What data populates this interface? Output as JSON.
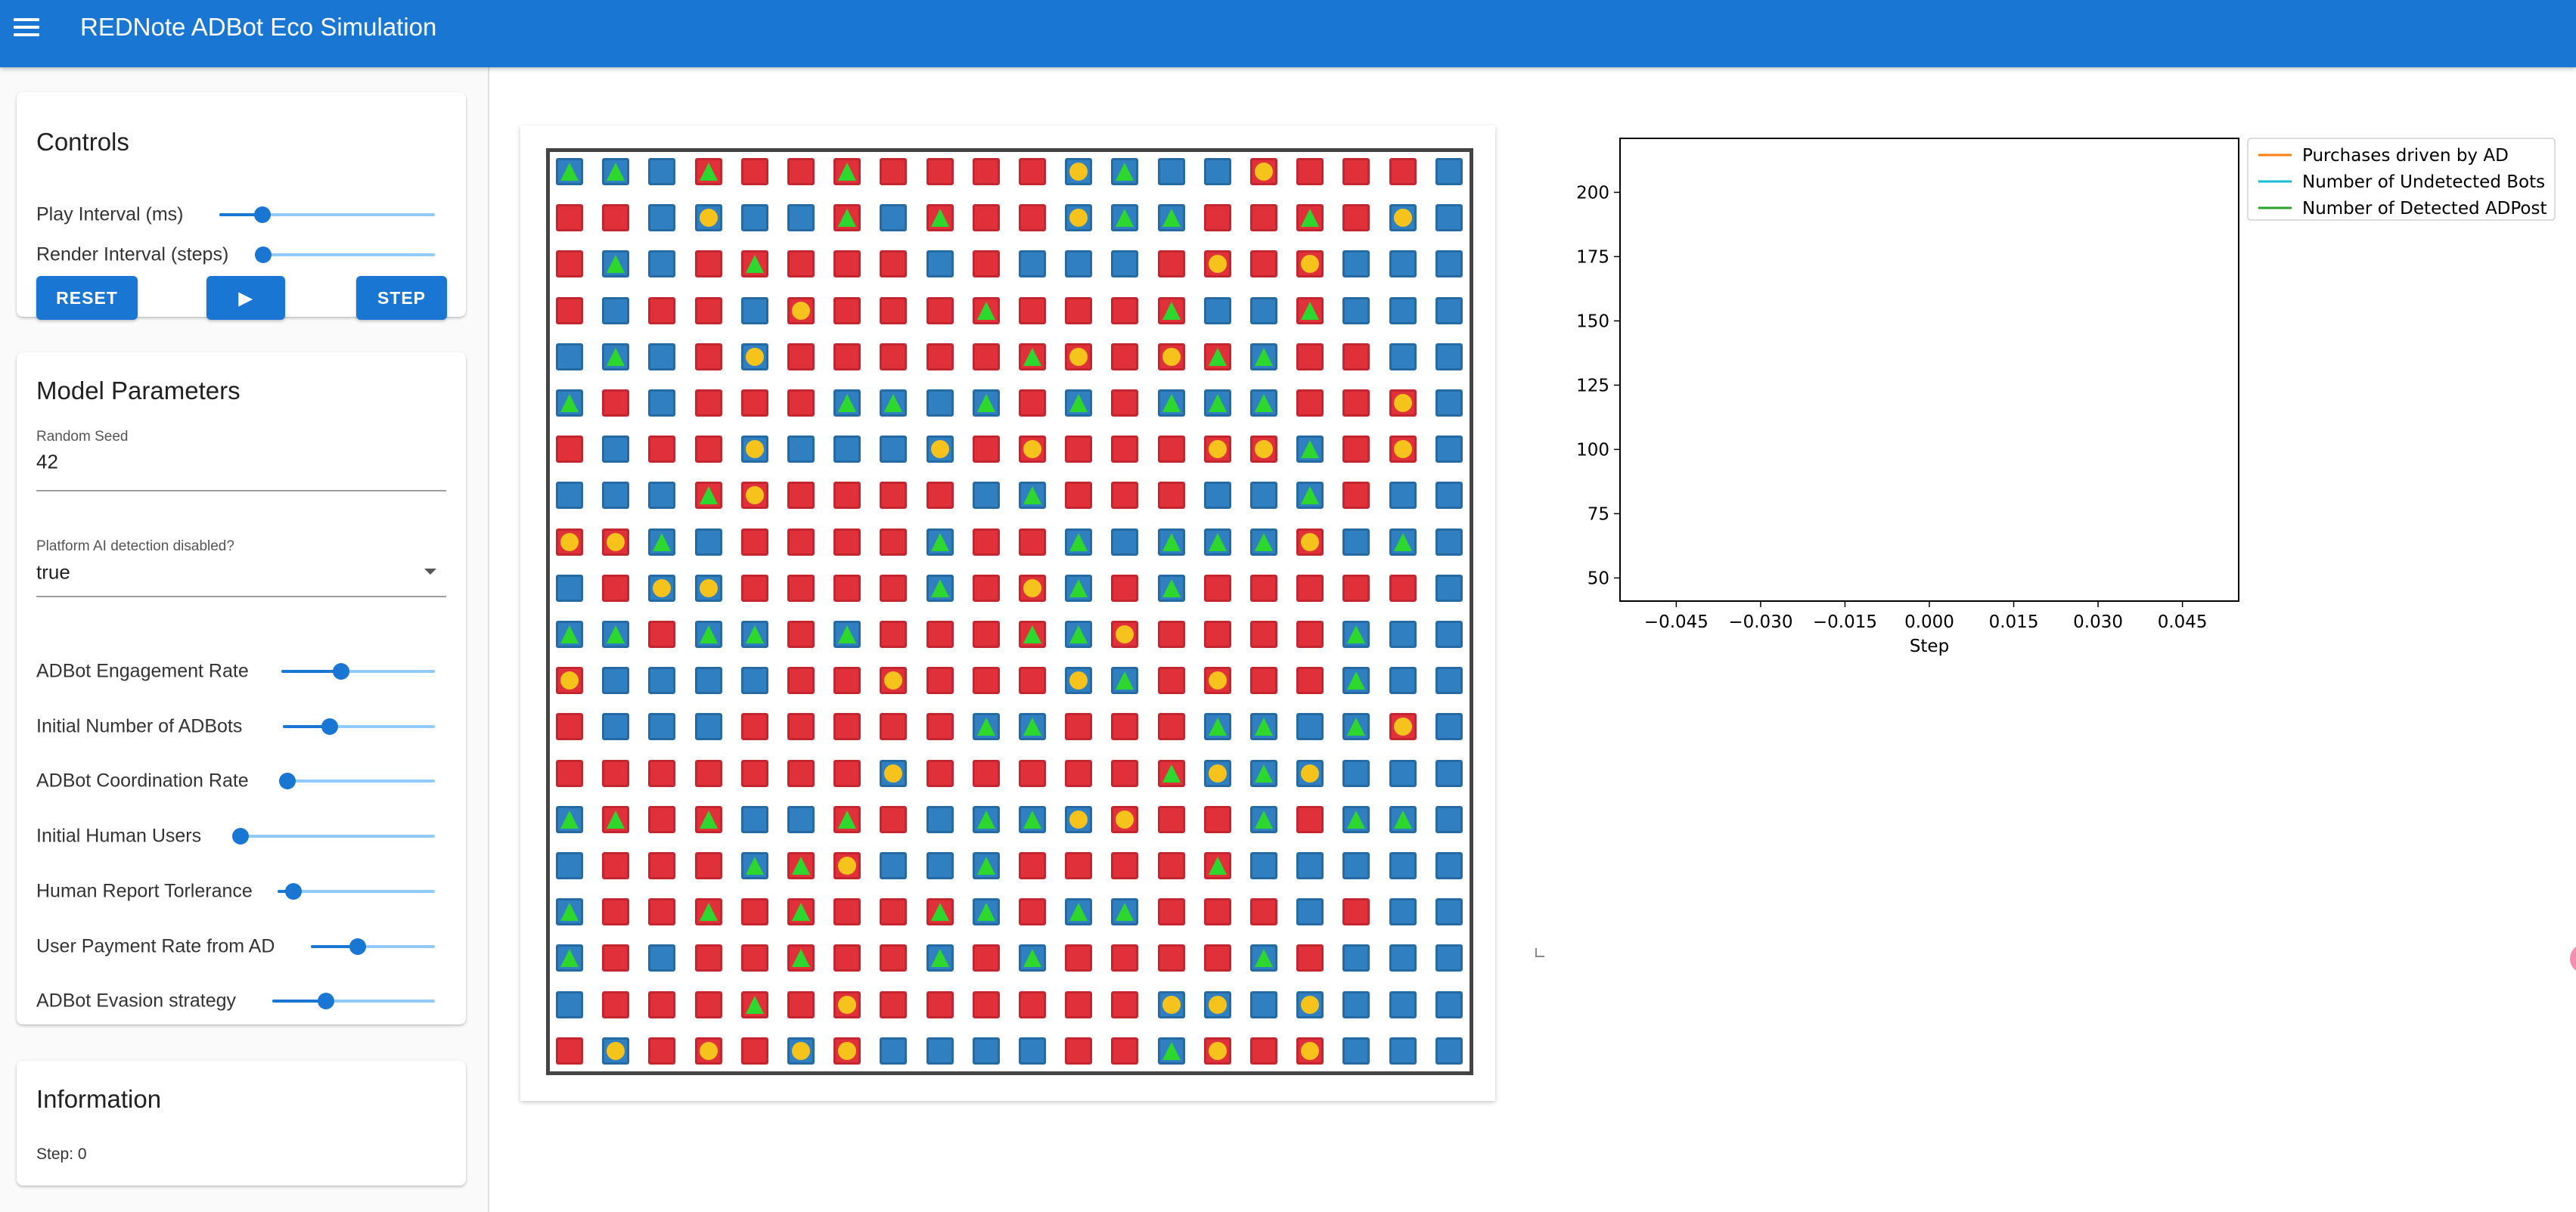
{
  "app": {
    "title": "REDNote ADBot Eco Simulation"
  },
  "controls": {
    "title": "Controls",
    "play_interval_label": "Play Interval (ms)",
    "play_interval_value": 0.2,
    "render_interval_label": "Render Interval (steps)",
    "render_interval_value": 0.0,
    "reset_label": "RESET",
    "play_label": "▶",
    "step_label": "STEP"
  },
  "params": {
    "title": "Model Parameters",
    "seed_label": "Random Seed",
    "seed_value": "42",
    "detection_label": "Platform AI detection disabled?",
    "detection_value": "true",
    "sliders": [
      {
        "label": "ADBot Engagement Rate",
        "value": 0.39
      },
      {
        "label": "Initial Number of ADBots",
        "value": 0.31
      },
      {
        "label": "ADBot Coordination Rate",
        "value": 0.05
      },
      {
        "label": "Initial Human Users",
        "value": 0.02
      },
      {
        "label": "Human Report Torlerance",
        "value": 0.1
      },
      {
        "label": "User Payment Rate from AD",
        "value": 0.38
      },
      {
        "label": "ADBot Evasion strategy",
        "value": 0.33
      }
    ]
  },
  "info": {
    "title": "Information",
    "step_text": "Step: 0"
  },
  "grid": {
    "rows": [
      "BTBTBBRGRBRBRGRBRBRBRBBCBTBBBBRCRBRBRR",
      "RBRBBBBCBBBBRTBBRTRBRBBCBTBTRBRBRTRBBC",
      "RBBTBBRBRTRBRBRBBBRBBBBBBBRBRCRBRCBB",
      "RBBBRBRBBBRCRBRBRBRTRBRBRBRTBBBBRTBB",
      "BBBTBBRBBCRBRBRBRBRBRTRCRBRCRTBTRBRB",
      "BTRBBBRBRBRBBTBTBBBTRBBTRBBTBTBTRBRBRC",
      "RBBBRBRBBCBBBBBBBCRBRCRBRBRBRCRCBTRBRC",
      "BBBBBBRTRCRBRBRBRBBBBTRBRBRBBBBBBTRB",
      "RCRCBTBBRBRBRBRBBTRBRBBTBBBTBTBTRCBBBT",
      "BBRBBCBCRBRBRBRBBTRBRCBTRBBTRBRBRBRBRB",
      "BTBTRBBTBTRBBTRBRBRBRTBTRCRBRBRBRBBTBB",
      "RCBBBBBBBBRBRBRCRBRBRBBCBTRBRCRBRBBT",
      "RBBBBBBBRBRBRBRBRBBTBTRBRBRBBTBTBBBTRC",
      "RBRBRBRBRBRBRBBCRBRBRBRBRBRTBCBTBCBB",
      "BTRTRBRTBBBBRTRBBBBTBTBCRCRBRBBTRBBTBT",
      "BBRBRBRBBTRTRCBBBBBTRBRBRBRBRTBBBBBB",
      "BTRBRBRTRBRTRBRBRTBTRBBTBTRBRBRBBBRB",
      "BTRBBBRBRBRTRBRBBTRBBTRBRBRBRBBTRBBB",
      "BBRBRBRBRTRBRCRBRBRBRBRBRBBCBCBBBC",
      "RBBCRBRCRBBCRCBBBBBBBBRBRBBTRCRBRC"
    ]
  },
  "chart_data": {
    "type": "line",
    "title": "",
    "xlabel": "Step",
    "ylabel": "",
    "xlim": [
      -0.055,
      0.055
    ],
    "ylim": [
      41,
      221
    ],
    "xticks": [
      "−0.045",
      "−0.030",
      "−0.015",
      "0.000",
      "0.015",
      "0.030",
      "0.045"
    ],
    "xtick_values": [
      -0.045,
      -0.03,
      -0.015,
      0.0,
      0.015,
      0.03,
      0.045
    ],
    "yticks": [
      50,
      75,
      100,
      125,
      150,
      175,
      200
    ],
    "legend_position": "outside-right",
    "series": [
      {
        "name": "Purchases driven by AD",
        "color": "#ff7f0e",
        "values": []
      },
      {
        "name": "Number of Undetected Bots",
        "color": "#17becf",
        "values": []
      },
      {
        "name": "Number of Detected ADPost",
        "color": "#2ca02c",
        "values": []
      }
    ]
  }
}
